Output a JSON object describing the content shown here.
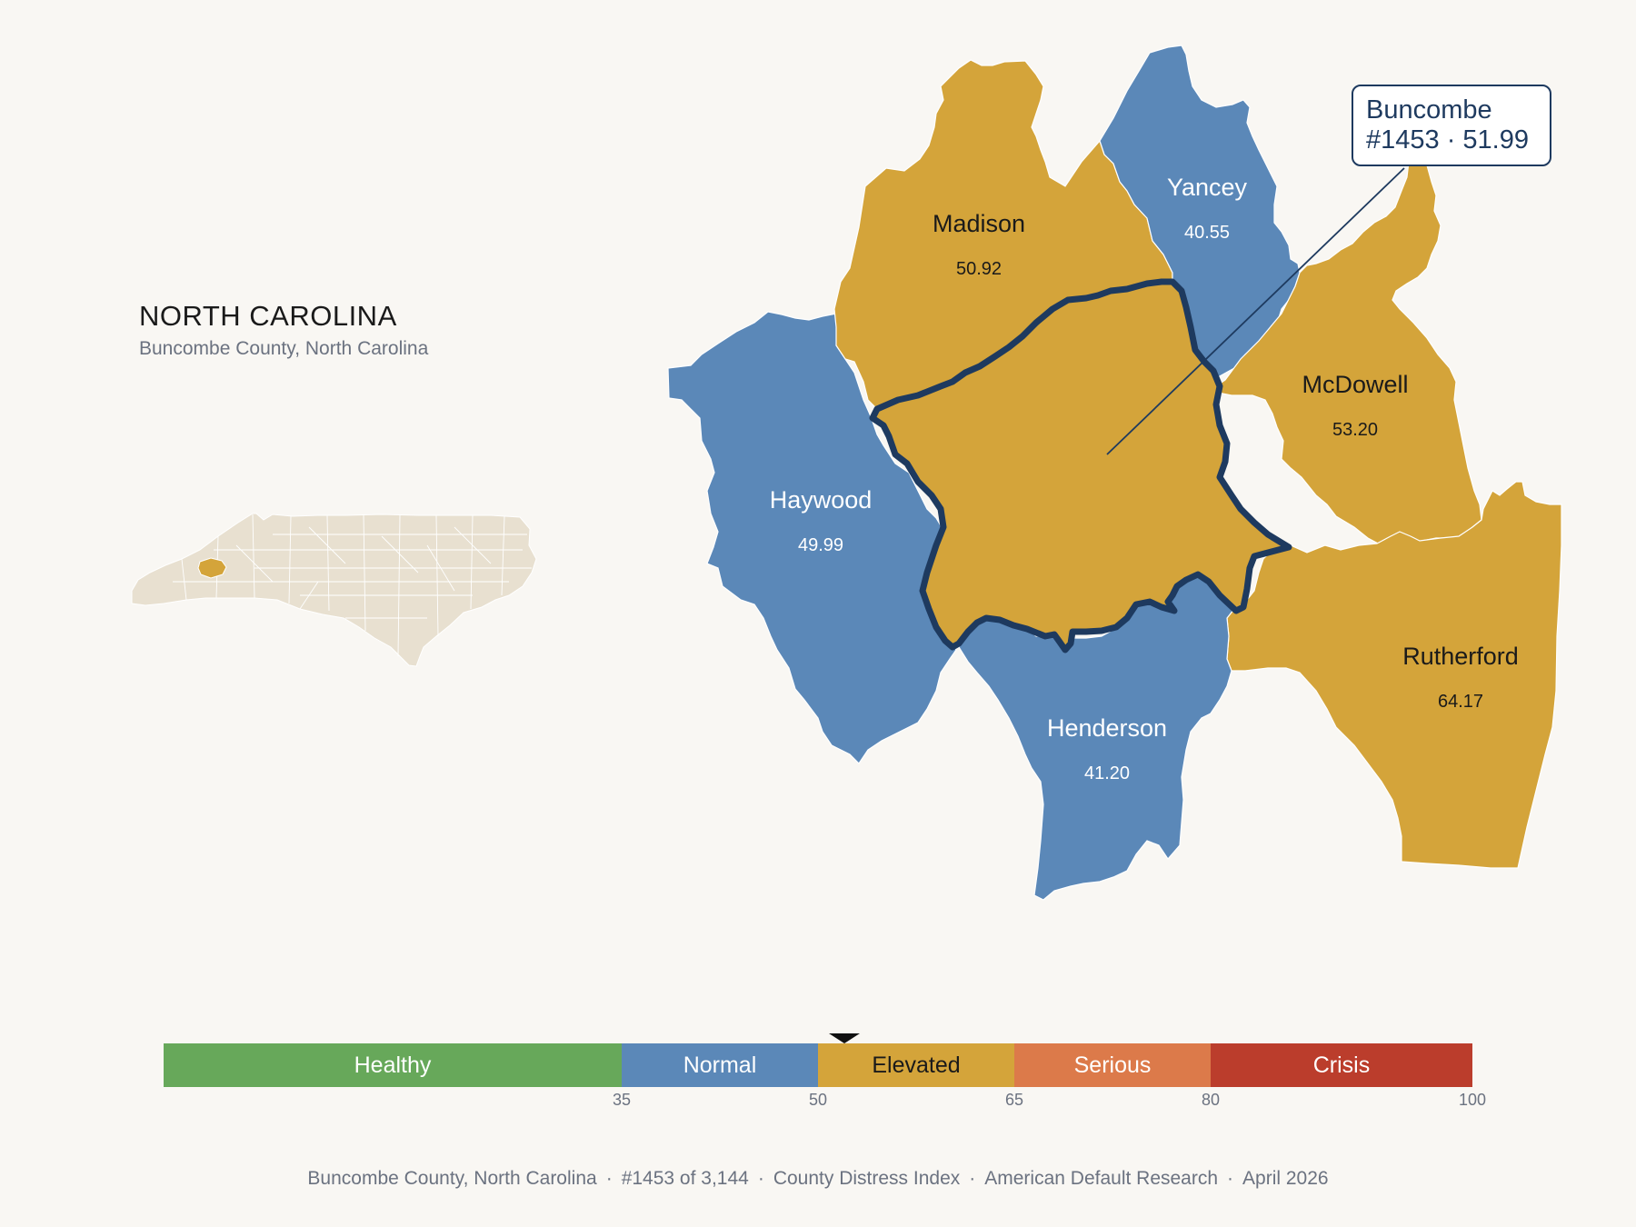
{
  "header": {
    "title": "NORTH CAROLINA",
    "subtitle": "Buncombe County, North Carolina"
  },
  "callout": {
    "county": "Buncombe",
    "rank_value": "#1453 · 51.99"
  },
  "counties": [
    {
      "name": "Madison",
      "value": "50.92",
      "category": "Elevated"
    },
    {
      "name": "Yancey",
      "value": "40.55",
      "category": "Normal"
    },
    {
      "name": "McDowell",
      "value": "53.20",
      "category": "Elevated"
    },
    {
      "name": "Haywood",
      "value": "49.99",
      "category": "Normal"
    },
    {
      "name": "Henderson",
      "value": "41.20",
      "category": "Normal"
    },
    {
      "name": "Rutherford",
      "value": "64.17",
      "category": "Elevated"
    },
    {
      "name": "Buncombe",
      "value": "51.99",
      "category": "Elevated",
      "highlighted": true
    }
  ],
  "legend": {
    "segments": [
      {
        "label": "Healthy",
        "min": 0,
        "max": 35,
        "color": "#67a85a",
        "text_color": "#ffffff"
      },
      {
        "label": "Normal",
        "min": 35,
        "max": 50,
        "color": "#5b88b8",
        "text_color": "#ffffff"
      },
      {
        "label": "Elevated",
        "min": 50,
        "max": 65,
        "color": "#d4a43a",
        "text_color": "#1a1a1a"
      },
      {
        "label": "Serious",
        "min": 65,
        "max": 80,
        "color": "#dc7a4a",
        "text_color": "#ffffff"
      },
      {
        "label": "Crisis",
        "min": 80,
        "max": 100,
        "color": "#bb3d2c",
        "text_color": "#ffffff"
      }
    ],
    "ticks": [
      "35",
      "50",
      "65",
      "80",
      "100"
    ],
    "marker_value": 51.99
  },
  "footer": {
    "items": [
      "Buncombe County, North Carolina",
      "#1453 of 3,144",
      "County Distress Index",
      "American Default Research",
      "April 2026"
    ]
  },
  "colors": {
    "normal": "#5b88b8",
    "elevated": "#d4a43a",
    "highlight_border": "#1e3a5f",
    "inset_state": "#e8e0d0"
  }
}
